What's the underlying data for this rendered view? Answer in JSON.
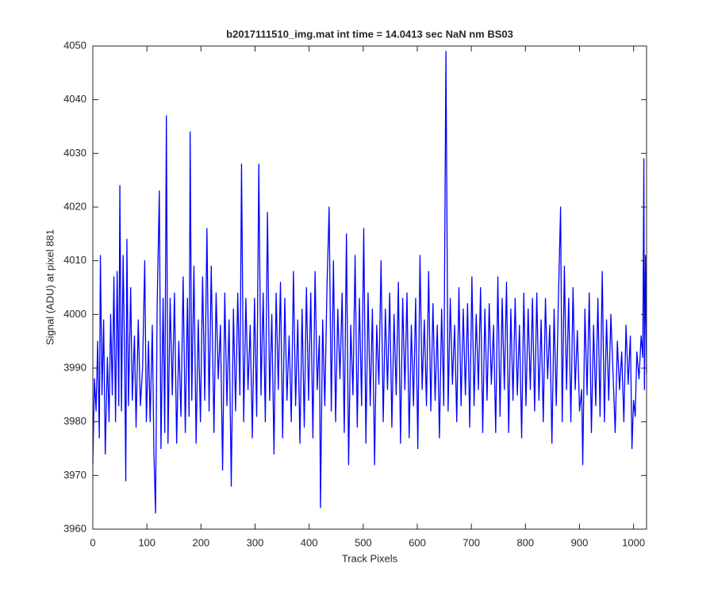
{
  "chart_data": {
    "type": "line",
    "title": "b2017111510_img.mat int time = 14.0413 sec  NaN nm BS03",
    "xlabel": "Track Pixels",
    "ylabel": "Signal (ADU) at pixel 881",
    "xlim": [
      0,
      1024
    ],
    "ylim": [
      3960,
      4050
    ],
    "xticks": [
      0,
      100,
      200,
      300,
      400,
      500,
      600,
      700,
      800,
      900,
      1000
    ],
    "yticks": [
      3960,
      3970,
      3980,
      3990,
      4000,
      4010,
      4020,
      4030,
      4040,
      4050
    ],
    "grid": false,
    "x": [
      0,
      3,
      6,
      9,
      12,
      14,
      17,
      20,
      23,
      27,
      30,
      33,
      36,
      39,
      42,
      45,
      48,
      50,
      53,
      56,
      59,
      61,
      63,
      66,
      70,
      73,
      77,
      80,
      84,
      88,
      92,
      96,
      99,
      103,
      106,
      110,
      113,
      116,
      119,
      123,
      126,
      130,
      133,
      136,
      139,
      143,
      147,
      151,
      155,
      159,
      163,
      167,
      171,
      175,
      178,
      180,
      183,
      187,
      191,
      195,
      199,
      203,
      207,
      211,
      215,
      219,
      224,
      228,
      232,
      236,
      240,
      244,
      248,
      252,
      256,
      260,
      264,
      268,
      272,
      275,
      279,
      283,
      287,
      291,
      295,
      299,
      303,
      307,
      311,
      315,
      319,
      323,
      327,
      331,
      335,
      339,
      343,
      347,
      351,
      355,
      359,
      363,
      367,
      371,
      375,
      379,
      383,
      387,
      391,
      395,
      399,
      403,
      407,
      411,
      415,
      419,
      421,
      425,
      429,
      433,
      437,
      441,
      445,
      449,
      453,
      457,
      461,
      465,
      469,
      473,
      477,
      481,
      485,
      489,
      493,
      497,
      501,
      505,
      509,
      513,
      517,
      521,
      525,
      529,
      533,
      537,
      541,
      545,
      549,
      553,
      557,
      561,
      565,
      569,
      573,
      577,
      581,
      585,
      589,
      593,
      597,
      601,
      605,
      609,
      613,
      617,
      621,
      625,
      629,
      633,
      637,
      641,
      645,
      649,
      653,
      657,
      661,
      665,
      669,
      673,
      677,
      681,
      685,
      689,
      693,
      697,
      701,
      705,
      709,
      713,
      717,
      721,
      725,
      729,
      733,
      737,
      741,
      745,
      749,
      753,
      757,
      761,
      765,
      769,
      773,
      777,
      781,
      785,
      789,
      793,
      797,
      801,
      805,
      809,
      813,
      817,
      821,
      825,
      829,
      833,
      837,
      841,
      845,
      849,
      853,
      857,
      861,
      865,
      868,
      872,
      876,
      880,
      884,
      888,
      892,
      896,
      900,
      904,
      906,
      910,
      914,
      918,
      922,
      926,
      930,
      934,
      938,
      942,
      946,
      950,
      954,
      958,
      962,
      966,
      970,
      974,
      978,
      982,
      986,
      990,
      994,
      997,
      1000,
      1003,
      1006,
      1010,
      1014,
      1017,
      1019,
      1020,
      1022,
      1024
    ],
    "series": [
      {
        "color": "#0000ff",
        "values": [
          3972,
          3988,
          3982,
          3995,
          3977,
          4011,
          3985,
          3999,
          3974,
          3992,
          3980,
          4000,
          3985,
          4007,
          3980,
          4008,
          3983,
          4024,
          3982,
          4011,
          3990,
          3969,
          4014,
          3983,
          4005,
          3984,
          3996,
          3979,
          3999,
          3983,
          3990,
          4010,
          3980,
          3995,
          3980,
          3998,
          3974,
          3963,
          4002,
          4023,
          3975,
          4003,
          3978,
          4037,
          3976,
          4003,
          3985,
          4004,
          3976,
          3995,
          3981,
          4007,
          3978,
          4003,
          3981,
          4034,
          3984,
          4009,
          3976,
          3999,
          3980,
          4007,
          3984,
          4016,
          3982,
          4009,
          3978,
          4004,
          3988,
          3998,
          3971,
          4004,
          3983,
          3999,
          3968,
          4001,
          3982,
          4004,
          3985,
          4028,
          3980,
          4003,
          3986,
          3998,
          3977,
          4003,
          3981,
          4028,
          3985,
          4004,
          3980,
          4019,
          3984,
          4000,
          3974,
          4004,
          3986,
          4006,
          3977,
          4003,
          3984,
          3996,
          3980,
          4008,
          3983,
          3999,
          3976,
          4001,
          3979,
          4005,
          3984,
          4004,
          3977,
          4008,
          3986,
          3996,
          3964,
          3999,
          3983,
          4005,
          4020,
          3982,
          4010,
          3980,
          4001,
          3988,
          4004,
          3978,
          4015,
          3972,
          3998,
          3985,
          4011,
          3979,
          4003,
          3983,
          4016,
          3976,
          4004,
          3983,
          4001,
          3972,
          3998,
          3987,
          4010,
          3980,
          4001,
          3986,
          4004,
          3979,
          4000,
          3985,
          4006,
          3976,
          4003,
          3986,
          4004,
          3977,
          3998,
          3983,
          4003,
          3975,
          4011,
          3986,
          3999,
          3983,
          4008,
          3982,
          4002,
          3984,
          3998,
          3977,
          4001,
          3983,
          4049,
          3982,
          4003,
          3987,
          3998,
          3980,
          4005,
          3983,
          4001,
          3985,
          4002,
          3979,
          4007,
          3983,
          4000,
          3986,
          4005,
          3978,
          4001,
          3984,
          4002,
          3987,
          3998,
          3978,
          4007,
          3981,
          4003,
          3986,
          4006,
          3978,
          4001,
          3984,
          4003,
          3985,
          3998,
          3977,
          4004,
          3983,
          4001,
          3986,
          4003,
          3982,
          4004,
          3984,
          3999,
          3980,
          4003,
          3988,
          3998,
          3976,
          4001,
          3983,
          4003,
          4020,
          3980,
          4009,
          3986,
          4003,
          3980,
          4005,
          3986,
          3997,
          3982,
          3986,
          3972,
          4001,
          3985,
          4004,
          3978,
          3998,
          3983,
          4003,
          3981,
          4008,
          3980,
          3999,
          3984,
          4000,
          3989,
          3978,
          3995,
          3986,
          3993,
          3980,
          3998,
          3987,
          3996,
          3975,
          3984,
          3981,
          3993,
          3988,
          3996,
          3992,
          4029,
          3986,
          4011,
          3989
        ]
      }
    ]
  }
}
